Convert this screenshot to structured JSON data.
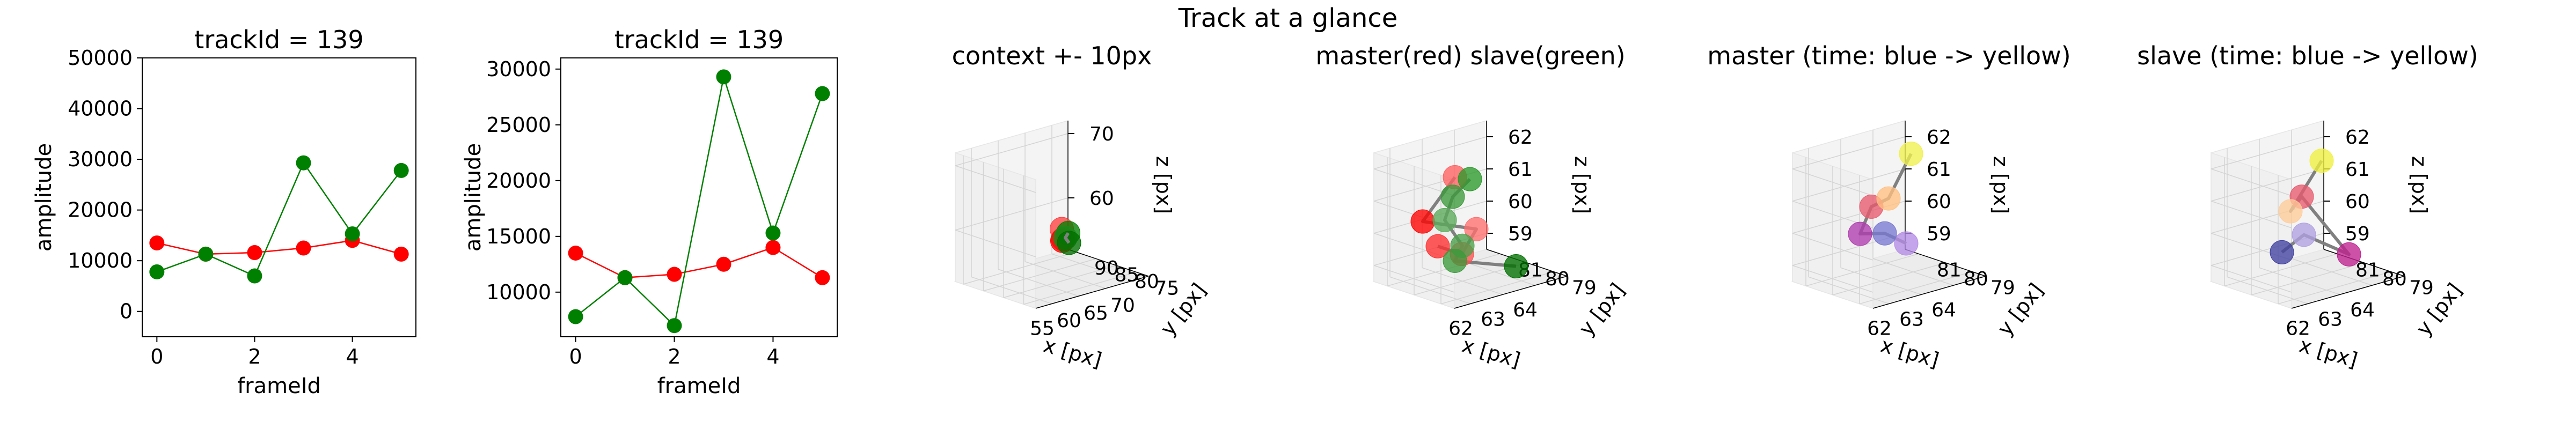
{
  "figure": {
    "suptitle": "Track at a glance"
  },
  "chart_data": [
    {
      "type": "line",
      "title": "trackId = 139",
      "xlabel": "frameId",
      "ylabel": "amplitude",
      "xlim": [
        -0.3,
        5.3
      ],
      "ylim": [
        -5000,
        50000
      ],
      "xticks": [
        "0",
        "2",
        "4"
      ],
      "yticks": [
        "0",
        "10000",
        "20000",
        "30000",
        "40000",
        "50000"
      ],
      "x": [
        0,
        1,
        2,
        3,
        4,
        5
      ],
      "series": [
        {
          "color": "#ff0000",
          "values": [
            13500,
            11300,
            11600,
            12500,
            14000,
            11300
          ]
        },
        {
          "color": "#008000",
          "values": [
            7800,
            11300,
            7000,
            29300,
            15300,
            27800
          ]
        }
      ]
    },
    {
      "type": "line",
      "title": "trackId = 139",
      "xlabel": "frameId",
      "ylabel": "amplitude",
      "xlim": [
        -0.3,
        5.3
      ],
      "ylim": [
        6000,
        31000
      ],
      "xticks": [
        "0",
        "2",
        "4"
      ],
      "yticks": [
        "10000",
        "15000",
        "20000",
        "25000",
        "30000"
      ],
      "x": [
        0,
        1,
        2,
        3,
        4,
        5
      ],
      "series": [
        {
          "color": "#ff0000",
          "values": [
            13500,
            11300,
            11600,
            12500,
            14000,
            11300
          ]
        },
        {
          "color": "#008000",
          "values": [
            7800,
            11300,
            7000,
            29300,
            15300,
            27800
          ]
        }
      ]
    },
    {
      "type": "scatter",
      "title": "context +- 10px",
      "xlabel": "x [px]",
      "ylabel": "y [px]",
      "zlabel": "z [px]",
      "xticks": [
        "55",
        "60",
        "65",
        "70"
      ],
      "yticks": [
        "75",
        "80",
        "85",
        "90"
      ],
      "zticks": [
        "60",
        "70"
      ],
      "xlim": [
        52,
        73
      ],
      "ylim": [
        72,
        92
      ],
      "zlim": [
        52,
        72
      ],
      "points": [
        {
          "x": 63.0,
          "y": 80.2,
          "z": 60.0,
          "color": "#ff4040"
        },
        {
          "x": 62.8,
          "y": 79.6,
          "z": 58.6,
          "color": "#ff2020"
        },
        {
          "x": 63.4,
          "y": 80.6,
          "z": 58.0,
          "color": "#ff0000"
        },
        {
          "x": 63.6,
          "y": 79.4,
          "z": 59.4,
          "color": "#008000"
        },
        {
          "x": 63.8,
          "y": 80.4,
          "z": 58.4,
          "color": "#1a8a1a"
        },
        {
          "x": 64.2,
          "y": 80.0,
          "z": 57.6,
          "color": "#007000"
        }
      ]
    },
    {
      "type": "scatter",
      "title": "master(red) slave(green)",
      "xlabel": "x [px]",
      "ylabel": "y [px]",
      "zlabel": "z [px]",
      "xticks": [
        "62",
        "63",
        "64"
      ],
      "yticks": [
        "79",
        "80",
        "81"
      ],
      "zticks": [
        "59",
        "60",
        "61",
        "62"
      ],
      "xlim": [
        61.5,
        65
      ],
      "ylim": [
        78.5,
        81.5
      ],
      "zlim": [
        58.5,
        62.5
      ],
      "master_path": [
        {
          "x": 62.6,
          "y": 79.8,
          "z": 61.9,
          "color": "#ff6060"
        },
        {
          "x": 62.1,
          "y": 80.4,
          "z": 60.5,
          "color": "#ff0000"
        },
        {
          "x": 63.1,
          "y": 79.6,
          "z": 60.2,
          "color": "#ff7070"
        },
        {
          "x": 62.9,
          "y": 79.9,
          "z": 59.4,
          "color": "#ff5050"
        },
        {
          "x": 62.4,
          "y": 80.2,
          "z": 59.7,
          "color": "#ff3030"
        }
      ],
      "slave_path": [
        {
          "x": 63.4,
          "y": 80.2,
          "z": 61.5,
          "color": "#2a9a2a"
        },
        {
          "x": 63.2,
          "y": 80.6,
          "z": 60.9,
          "color": "#3a9a3a"
        },
        {
          "x": 62.7,
          "y": 80.3,
          "z": 60.4,
          "color": "#5aaa5a"
        },
        {
          "x": 63.0,
          "y": 80.0,
          "z": 59.6,
          "color": "#4aa04a"
        },
        {
          "x": 62.6,
          "y": 79.8,
          "z": 59.3,
          "color": "#3a9a3a"
        },
        {
          "x": 64.0,
          "y": 79.2,
          "z": 58.9,
          "color": "#007000"
        }
      ]
    },
    {
      "type": "scatter",
      "title": "master (time: blue -> yellow)",
      "xlabel": "x [px]",
      "ylabel": "y [px]",
      "zlabel": "z [px]",
      "xticks": [
        "62",
        "63",
        "64"
      ],
      "yticks": [
        "79",
        "80",
        "81"
      ],
      "zticks": [
        "59",
        "60",
        "61",
        "62"
      ],
      "xlim": [
        61.5,
        65
      ],
      "ylim": [
        78.5,
        81.5
      ],
      "zlim": [
        58.5,
        62.5
      ],
      "points": [
        {
          "x": 63.7,
          "y": 79.9,
          "z": 59.5,
          "color": "#b48ce6"
        },
        {
          "x": 63.2,
          "y": 80.1,
          "z": 59.9,
          "color": "#7878d2"
        },
        {
          "x": 62.6,
          "y": 80.3,
          "z": 60.0,
          "color": "#b03cb0"
        },
        {
          "x": 62.7,
          "y": 80.0,
          "z": 60.9,
          "color": "#e85a6e"
        },
        {
          "x": 63.4,
          "y": 80.2,
          "z": 60.9,
          "color": "#ffc080"
        },
        {
          "x": 63.6,
          "y": 79.6,
          "z": 62.4,
          "color": "#f0f050"
        }
      ]
    },
    {
      "type": "scatter",
      "title": "slave (time: blue -> yellow)",
      "xlabel": "x [px]",
      "ylabel": "y [px]",
      "zlabel": "z [px]",
      "xticks": [
        "62",
        "63",
        "64"
      ],
      "yticks": [
        "79",
        "80",
        "81"
      ],
      "zticks": [
        "59",
        "60",
        "61",
        "62"
      ],
      "xlim": [
        61.5,
        65
      ],
      "ylim": [
        78.5,
        81.5
      ],
      "zlim": [
        58.5,
        62.5
      ],
      "points": [
        {
          "x": 62.7,
          "y": 80.3,
          "z": 59.4,
          "color": "#4040a0"
        },
        {
          "x": 63.3,
          "y": 80.2,
          "z": 59.8,
          "color": "#b0a0e0"
        },
        {
          "x": 64.2,
          "y": 79.6,
          "z": 59.1,
          "color": "#c02090"
        },
        {
          "x": 63.4,
          "y": 80.4,
          "z": 60.9,
          "color": "#e85a6e"
        },
        {
          "x": 62.8,
          "y": 80.1,
          "z": 60.7,
          "color": "#ffcc99"
        },
        {
          "x": 63.6,
          "y": 79.9,
          "z": 62.1,
          "color": "#f0f040"
        }
      ]
    }
  ]
}
